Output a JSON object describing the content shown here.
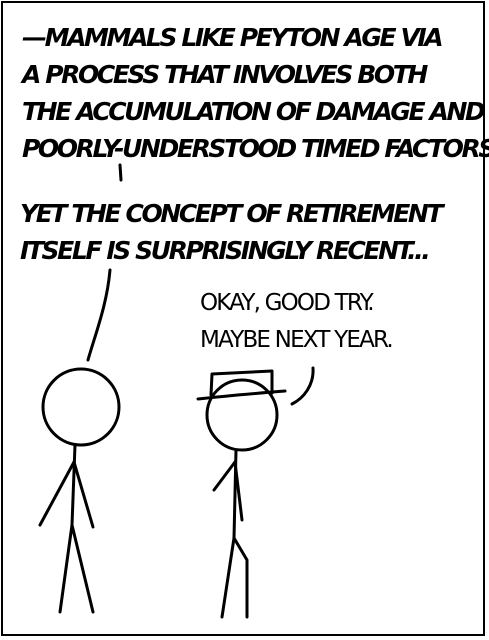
{
  "panel": {
    "lines_speaker_left": [
      "—Mammals like Peyton age via",
      "a process that involves both",
      "the accumulation of damage and",
      "poorly-understood timed factors."
    ],
    "lines_speaker_left_cont": [
      "Yet the concept of retirement",
      "itself is surprisingly recent..."
    ],
    "lines_speaker_right": [
      "Okay, good try.",
      "Maybe next year."
    ]
  },
  "colors": {
    "ink": "#000000",
    "paper": "#ffffff"
  }
}
